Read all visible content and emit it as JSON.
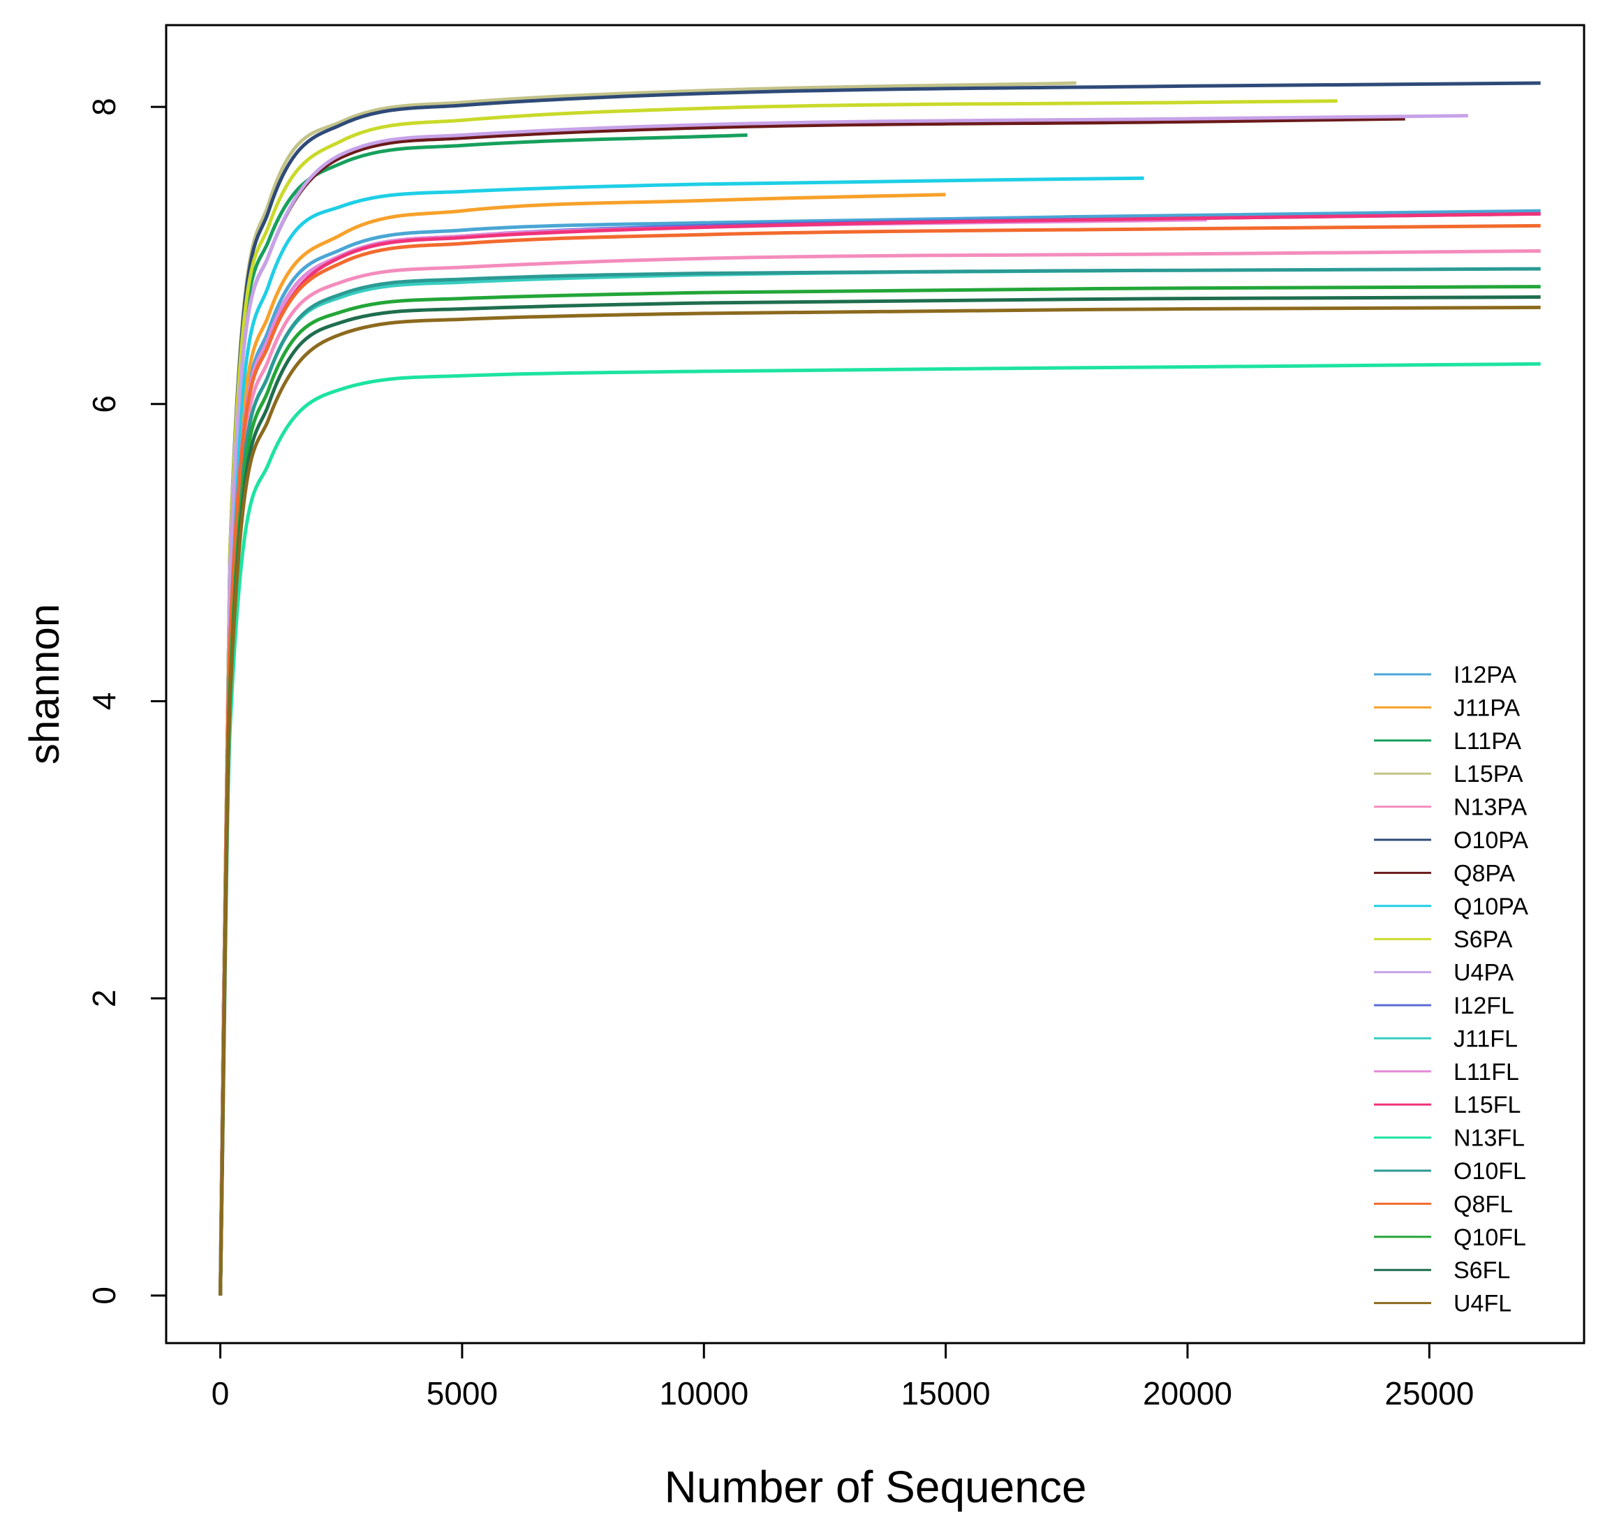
{
  "chart_data": {
    "type": "line",
    "title": "",
    "xlabel": "Number of Sequence",
    "ylabel": "shannon",
    "xlim": [
      -1120,
      28200
    ],
    "ylim": [
      -0.32,
      8.55
    ],
    "xticks": [
      0,
      5000,
      10000,
      15000,
      20000,
      25000
    ],
    "xtick_labels": [
      "0",
      "5000",
      "10000",
      "15000",
      "20000",
      "25000"
    ],
    "yticks": [
      0,
      2,
      4,
      6,
      8
    ],
    "ytick_labels": [
      "0",
      "2",
      "4",
      "6",
      "8"
    ],
    "grid": false,
    "legend_position": "bottom-right",
    "series": [
      {
        "name": "I12PA",
        "color": "#4aa6d4",
        "x": [
          0,
          200,
          1000,
          2500,
          5000,
          10000,
          20000,
          27300
        ],
        "y": [
          0,
          4.4,
          6.5,
          7.04,
          7.17,
          7.22,
          7.27,
          7.3
        ]
      },
      {
        "name": "J11PA",
        "color": "#f7a12a",
        "x": [
          0,
          200,
          1000,
          2500,
          5000,
          10000,
          15000
        ],
        "y": [
          0,
          4.5,
          6.6,
          7.14,
          7.3,
          7.37,
          7.41
        ]
      },
      {
        "name": "L11PA",
        "color": "#17a05d",
        "x": [
          0,
          200,
          1000,
          2500,
          5000,
          10900
        ],
        "y": [
          0,
          5.0,
          7.1,
          7.62,
          7.74,
          7.81
        ]
      },
      {
        "name": "L15PA",
        "color": "#c3c389",
        "x": [
          0,
          200,
          1000,
          2500,
          5000,
          10000,
          17700
        ],
        "y": [
          0,
          5.0,
          7.35,
          7.9,
          8.03,
          8.11,
          8.16
        ]
      },
      {
        "name": "N13PA",
        "color": "#f48cbd",
        "x": [
          0,
          200,
          1000,
          2500,
          5000,
          10000,
          20000,
          27300
        ],
        "y": [
          0,
          4.3,
          6.3,
          6.82,
          6.92,
          6.98,
          7.01,
          7.03
        ]
      },
      {
        "name": "O10PA",
        "color": "#2e4a78",
        "x": [
          0,
          200,
          1000,
          2500,
          5000,
          10000,
          20000,
          27300
        ],
        "y": [
          0,
          5.0,
          7.3,
          7.88,
          8.01,
          8.09,
          8.14,
          8.16
        ]
      },
      {
        "name": "Q8PA",
        "color": "#6b1a1a",
        "x": [
          0,
          200,
          1000,
          2500,
          5000,
          10000,
          20000,
          24500
        ],
        "y": [
          0,
          4.9,
          7.0,
          7.66,
          7.79,
          7.86,
          7.9,
          7.92
        ]
      },
      {
        "name": "Q10PA",
        "color": "#1ecfe6",
        "x": [
          0,
          200,
          1000,
          2500,
          5000,
          10000,
          19100
        ],
        "y": [
          0,
          4.6,
          6.8,
          7.33,
          7.43,
          7.48,
          7.52
        ]
      },
      {
        "name": "S6PA",
        "color": "#c9da2a",
        "x": [
          0,
          200,
          1000,
          2500,
          5000,
          10000,
          20000,
          23100
        ],
        "y": [
          0,
          5.0,
          7.2,
          7.77,
          7.91,
          7.99,
          8.03,
          8.04
        ]
      },
      {
        "name": "U4PA",
        "color": "#c7a2e8",
        "x": [
          0,
          200,
          1000,
          2500,
          5000,
          10000,
          20000,
          25800
        ],
        "y": [
          0,
          4.9,
          7.0,
          7.68,
          7.81,
          7.88,
          7.92,
          7.94
        ]
      },
      {
        "name": "I12FL",
        "color": "#5b6bd8",
        "x": [
          0,
          200,
          1000,
          2500,
          5000,
          10000,
          20000,
          27300
        ],
        "y": [
          0,
          4.4,
          6.45,
          7.0,
          7.13,
          7.2,
          7.25,
          7.28
        ]
      },
      {
        "name": "J11FL",
        "color": "#38cdc0",
        "x": [
          0,
          200,
          1000,
          2500,
          5000,
          10000,
          19100
        ],
        "y": [
          0,
          4.2,
          6.2,
          6.72,
          6.82,
          6.87,
          6.9
        ]
      },
      {
        "name": "L11FL",
        "color": "#e48ad8",
        "x": [
          0,
          200,
          1000,
          2500,
          5000,
          10000,
          20400
        ],
        "y": [
          0,
          4.4,
          6.45,
          7.0,
          7.13,
          7.19,
          7.24
        ]
      },
      {
        "name": "L15FL",
        "color": "#f0337a",
        "x": [
          0,
          200,
          1000,
          2500,
          5000,
          10000,
          20000,
          27300
        ],
        "y": [
          0,
          4.4,
          6.4,
          6.99,
          7.12,
          7.19,
          7.25,
          7.28
        ]
      },
      {
        "name": "N13FL",
        "color": "#1de3a1",
        "x": [
          0,
          200,
          1000,
          2500,
          5000,
          10000,
          20000,
          27300
        ],
        "y": [
          0,
          3.8,
          5.6,
          6.1,
          6.19,
          6.22,
          6.25,
          6.27
        ]
      },
      {
        "name": "O10FL",
        "color": "#2b9a94",
        "x": [
          0,
          200,
          1000,
          2500,
          5000,
          10000,
          20000,
          27300
        ],
        "y": [
          0,
          4.2,
          6.2,
          6.74,
          6.84,
          6.88,
          6.9,
          6.91
        ]
      },
      {
        "name": "Q8FL",
        "color": "#f26a2e",
        "x": [
          0,
          200,
          1000,
          2500,
          5000,
          10000,
          20000,
          27300
        ],
        "y": [
          0,
          4.4,
          6.4,
          6.95,
          7.08,
          7.14,
          7.18,
          7.2
        ]
      },
      {
        "name": "Q10FL",
        "color": "#23a638",
        "x": [
          0,
          200,
          1000,
          2500,
          5000,
          10000,
          20000,
          27300
        ],
        "y": [
          0,
          4.1,
          6.1,
          6.62,
          6.71,
          6.75,
          6.78,
          6.79
        ]
      },
      {
        "name": "S6FL",
        "color": "#1f6e4e",
        "x": [
          0,
          200,
          1000,
          2500,
          5000,
          10000,
          20000,
          27300
        ],
        "y": [
          0,
          4.0,
          6.0,
          6.55,
          6.64,
          6.68,
          6.71,
          6.72
        ]
      },
      {
        "name": "U4FL",
        "color": "#8c6a1e",
        "x": [
          0,
          200,
          1000,
          2500,
          5000,
          10000,
          20000,
          27300
        ],
        "y": [
          0,
          4.0,
          5.9,
          6.47,
          6.57,
          6.61,
          6.64,
          6.65
        ]
      }
    ]
  }
}
